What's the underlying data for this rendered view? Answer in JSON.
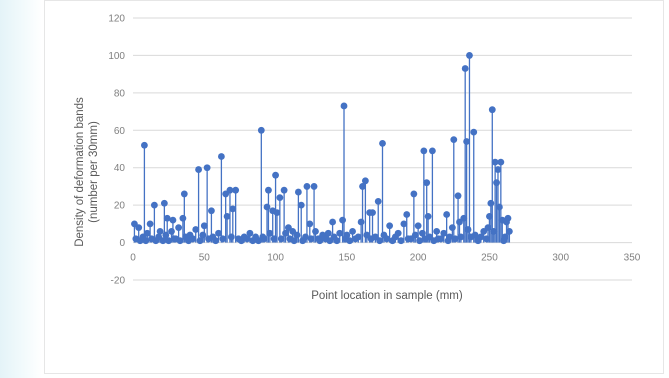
{
  "chart_data": {
    "type": "scatter",
    "style": "lollipop",
    "xlabel": "Point location in sample (mm)",
    "ylabel_line1": "Density of deformation bands",
    "ylabel_line2": "(number per 30mm)",
    "xlim": [
      0,
      350
    ],
    "ylim": [
      -20,
      120
    ],
    "x_ticks": [
      0,
      50,
      100,
      150,
      200,
      250,
      300,
      350
    ],
    "y_ticks": [
      -20,
      0,
      20,
      40,
      60,
      80,
      100,
      120
    ],
    "grid": "horizontal",
    "colors": {
      "marker": "#4472c4",
      "stem": "#4472c4",
      "grid": "#d9d9d9"
    },
    "points": [
      [
        1,
        10
      ],
      [
        2,
        2
      ],
      [
        4,
        8
      ],
      [
        5,
        1
      ],
      [
        7,
        3
      ],
      [
        8,
        52
      ],
      [
        9,
        1
      ],
      [
        10,
        5
      ],
      [
        12,
        10
      ],
      [
        13,
        2
      ],
      [
        15,
        20
      ],
      [
        16,
        1
      ],
      [
        18,
        3
      ],
      [
        19,
        6
      ],
      [
        21,
        1
      ],
      [
        22,
        21
      ],
      [
        23,
        4
      ],
      [
        24,
        13
      ],
      [
        25,
        1
      ],
      [
        27,
        6
      ],
      [
        28,
        12
      ],
      [
        29,
        2
      ],
      [
        30,
        2
      ],
      [
        32,
        8
      ],
      [
        33,
        1
      ],
      [
        35,
        13
      ],
      [
        36,
        26
      ],
      [
        37,
        3
      ],
      [
        39,
        1
      ],
      [
        40,
        4
      ],
      [
        42,
        2
      ],
      [
        44,
        7
      ],
      [
        46,
        39
      ],
      [
        47,
        1
      ],
      [
        49,
        4
      ],
      [
        50,
        9
      ],
      [
        52,
        40
      ],
      [
        53,
        2
      ],
      [
        55,
        17
      ],
      [
        56,
        3
      ],
      [
        58,
        1
      ],
      [
        60,
        5
      ],
      [
        62,
        46
      ],
      [
        63,
        2
      ],
      [
        65,
        26
      ],
      [
        66,
        14
      ],
      [
        68,
        28
      ],
      [
        69,
        3
      ],
      [
        70,
        18
      ],
      [
        72,
        28
      ],
      [
        74,
        2
      ],
      [
        76,
        1
      ],
      [
        78,
        3
      ],
      [
        80,
        2
      ],
      [
        82,
        5
      ],
      [
        84,
        1
      ],
      [
        86,
        3
      ],
      [
        88,
        1
      ],
      [
        90,
        60
      ],
      [
        91,
        3
      ],
      [
        92,
        2
      ],
      [
        94,
        19
      ],
      [
        95,
        28
      ],
      [
        96,
        5
      ],
      [
        98,
        17
      ],
      [
        99,
        2
      ],
      [
        100,
        36
      ],
      [
        101,
        16
      ],
      [
        103,
        24
      ],
      [
        104,
        2
      ],
      [
        106,
        28
      ],
      [
        107,
        5
      ],
      [
        109,
        8
      ],
      [
        110,
        2
      ],
      [
        112,
        6
      ],
      [
        113,
        1
      ],
      [
        115,
        4
      ],
      [
        116,
        27
      ],
      [
        118,
        20
      ],
      [
        119,
        1
      ],
      [
        121,
        3
      ],
      [
        122,
        30
      ],
      [
        124,
        10
      ],
      [
        125,
        2
      ],
      [
        127,
        30
      ],
      [
        128,
        6
      ],
      [
        130,
        2
      ],
      [
        131,
        1
      ],
      [
        133,
        4
      ],
      [
        135,
        2
      ],
      [
        137,
        5
      ],
      [
        138,
        1
      ],
      [
        140,
        11
      ],
      [
        141,
        3
      ],
      [
        143,
        1
      ],
      [
        145,
        5
      ],
      [
        147,
        12
      ],
      [
        148,
        73
      ],
      [
        149,
        2
      ],
      [
        150,
        4
      ],
      [
        152,
        1
      ],
      [
        154,
        6
      ],
      [
        156,
        2
      ],
      [
        158,
        3
      ],
      [
        160,
        11
      ],
      [
        161,
        30
      ],
      [
        163,
        33
      ],
      [
        164,
        4
      ],
      [
        166,
        16
      ],
      [
        167,
        2
      ],
      [
        168,
        16
      ],
      [
        170,
        3
      ],
      [
        172,
        22
      ],
      [
        173,
        1
      ],
      [
        175,
        53
      ],
      [
        176,
        4
      ],
      [
        178,
        2
      ],
      [
        180,
        9
      ],
      [
        182,
        1
      ],
      [
        184,
        3
      ],
      [
        186,
        5
      ],
      [
        188,
        1
      ],
      [
        190,
        10
      ],
      [
        192,
        15
      ],
      [
        193,
        2
      ],
      [
        195,
        2
      ],
      [
        197,
        26
      ],
      [
        198,
        4
      ],
      [
        200,
        9
      ],
      [
        201,
        1
      ],
      [
        203,
        5
      ],
      [
        204,
        49
      ],
      [
        205,
        2
      ],
      [
        206,
        32
      ],
      [
        207,
        14
      ],
      [
        208,
        3
      ],
      [
        210,
        49
      ],
      [
        211,
        1
      ],
      [
        213,
        6
      ],
      [
        214,
        2
      ],
      [
        216,
        2
      ],
      [
        218,
        5
      ],
      [
        220,
        15
      ],
      [
        221,
        1
      ],
      [
        222,
        3
      ],
      [
        224,
        8
      ],
      [
        225,
        55
      ],
      [
        226,
        2
      ],
      [
        228,
        25
      ],
      [
        229,
        11
      ],
      [
        230,
        3
      ],
      [
        232,
        13
      ],
      [
        233,
        93
      ],
      [
        234,
        54
      ],
      [
        235,
        7
      ],
      [
        236,
        100
      ],
      [
        237,
        3
      ],
      [
        239,
        59
      ],
      [
        240,
        4
      ],
      [
        242,
        1
      ],
      [
        244,
        3
      ],
      [
        246,
        6
      ],
      [
        248,
        2
      ],
      [
        249,
        8
      ],
      [
        250,
        14
      ],
      [
        251,
        21
      ],
      [
        252,
        71
      ],
      [
        253,
        6
      ],
      [
        254,
        43
      ],
      [
        255,
        32
      ],
      [
        256,
        39
      ],
      [
        257,
        19
      ],
      [
        258,
        43
      ],
      [
        259,
        12
      ],
      [
        260,
        1
      ],
      [
        261,
        3
      ],
      [
        262,
        11
      ],
      [
        263,
        13
      ],
      [
        264,
        6
      ]
    ]
  }
}
